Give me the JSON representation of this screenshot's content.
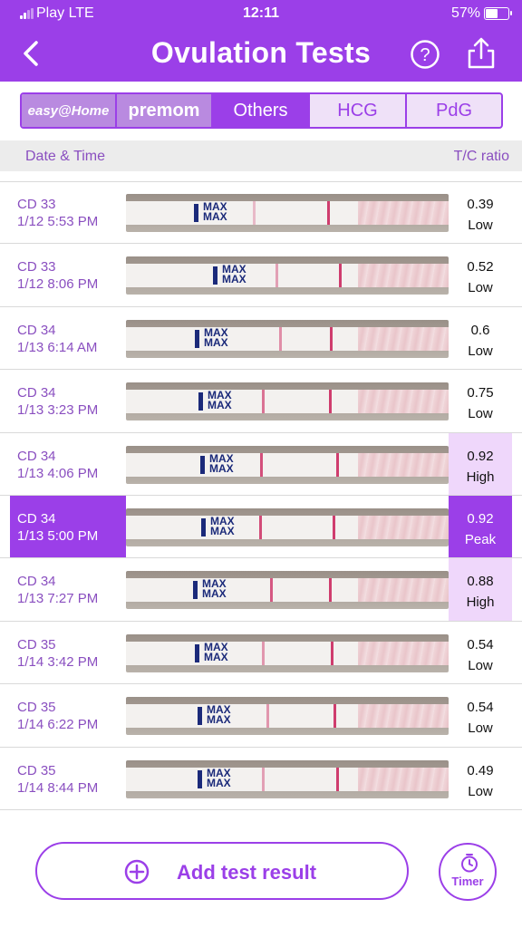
{
  "status_bar": {
    "carrier": "Play  LTE",
    "time": "12:11",
    "battery": "57%"
  },
  "header": {
    "title": "Ovulation Tests"
  },
  "tabs": [
    {
      "label": "easy@Home",
      "active": false
    },
    {
      "label": "premom",
      "active": false
    },
    {
      "label": "Others",
      "active": true
    },
    {
      "label": "HCG",
      "active": false
    },
    {
      "label": "PdG",
      "active": false
    }
  ],
  "columns": {
    "date": "Date & Time",
    "ratio": "T/C ratio"
  },
  "rows": [
    {
      "cd": "CD 33",
      "datetime": "1/12 5:53 PM",
      "ratio": "0.39",
      "level": "Low",
      "state": "low",
      "test_line": 0.3
    },
    {
      "cd": "CD 33",
      "datetime": "1/12 8:06 PM",
      "ratio": "0.52",
      "level": "Low",
      "state": "low",
      "test_line": 0.45
    },
    {
      "cd": "CD 34",
      "datetime": "1/13 6:14 AM",
      "ratio": "0.6",
      "level": "Low",
      "state": "low",
      "test_line": 0.55
    },
    {
      "cd": "CD 34",
      "datetime": "1/13 3:23 PM",
      "ratio": "0.75",
      "level": "Low",
      "state": "low",
      "test_line": 0.7
    },
    {
      "cd": "CD 34",
      "datetime": "1/13 4:06 PM",
      "ratio": "0.92",
      "level": "High",
      "state": "high",
      "test_line": 0.9
    },
    {
      "cd": "CD 34",
      "datetime": "1/13 5:00 PM",
      "ratio": "0.92",
      "level": "Peak",
      "state": "peak",
      "test_line": 0.92
    },
    {
      "cd": "CD 34",
      "datetime": "1/13 7:27 PM",
      "ratio": "0.88",
      "level": "High",
      "state": "high",
      "test_line": 0.85
    },
    {
      "cd": "CD 35",
      "datetime": "1/14 3:42 PM",
      "ratio": "0.54",
      "level": "Low",
      "state": "low",
      "test_line": 0.5
    },
    {
      "cd": "CD 35",
      "datetime": "1/14 6:22 PM",
      "ratio": "0.54",
      "level": "Low",
      "state": "low",
      "test_line": 0.5
    },
    {
      "cd": "CD 35",
      "datetime": "1/14 8:44 PM",
      "ratio": "0.49",
      "level": "Low",
      "state": "low",
      "test_line": 0.45
    }
  ],
  "strip": {
    "marker_text": "MAX"
  },
  "bottom": {
    "add_label": "Add test result",
    "timer_label": "Timer"
  },
  "colors": {
    "accent": "#9b3fe8",
    "high_bg": "#efd7fb",
    "line": "#cf3d6e"
  },
  "icons": [
    "back-icon",
    "help-icon",
    "share-icon",
    "add-icon",
    "timer-icon"
  ]
}
